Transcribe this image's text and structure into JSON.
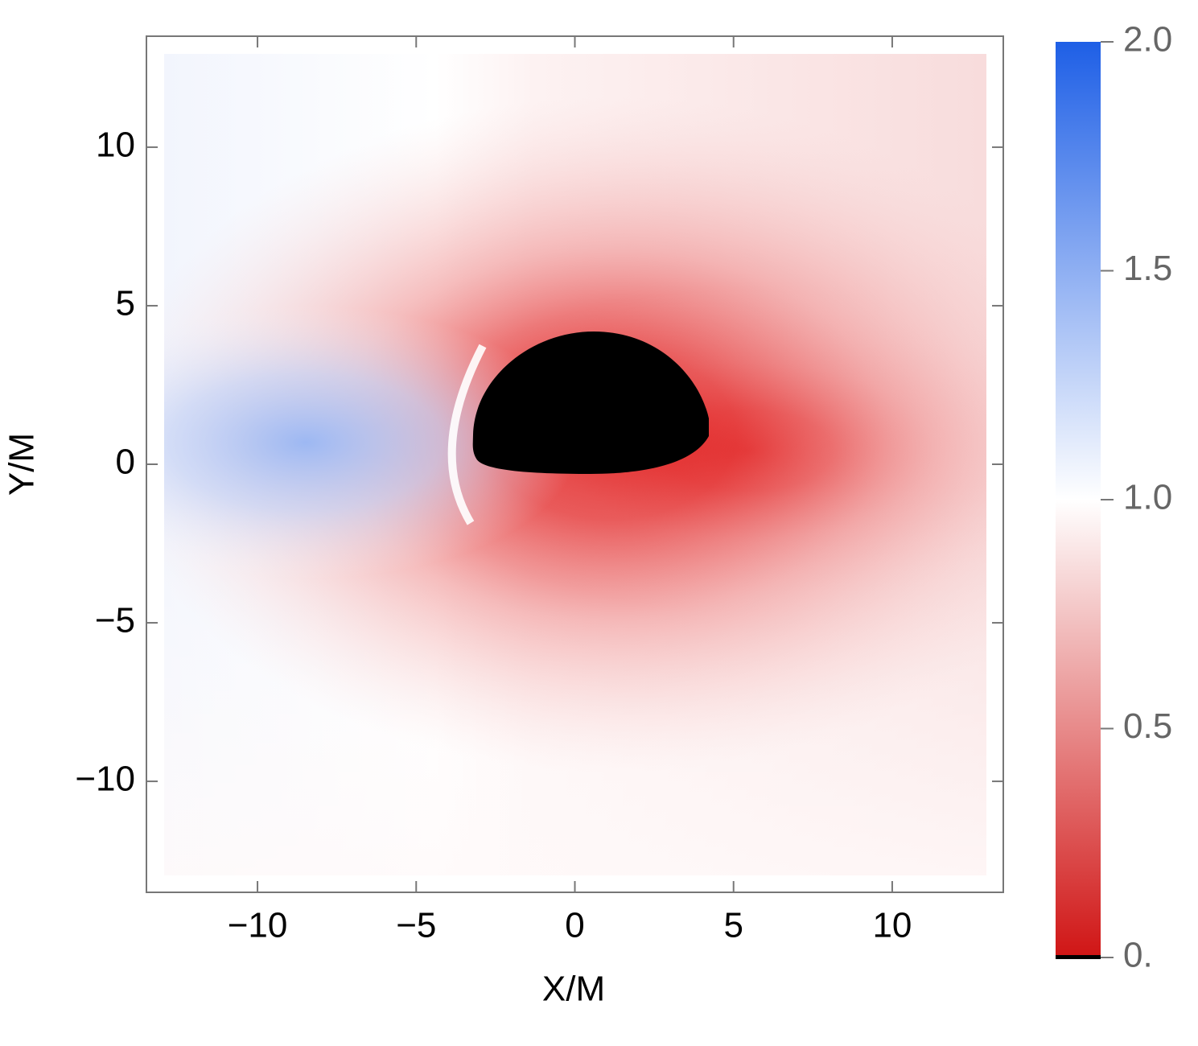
{
  "chart_data": {
    "type": "heatmap",
    "xlabel": "X/M",
    "ylabel": "Y/M",
    "xlim": [
      -13.5,
      13.5
    ],
    "ylim": [
      -13.5,
      13.5
    ],
    "xticks": [
      {
        "value": -10,
        "label": "−10"
      },
      {
        "value": -5,
        "label": "−5"
      },
      0,
      5,
      10
    ],
    "yticks": [
      {
        "value": -10,
        "label": "−10"
      },
      {
        "value": -5,
        "label": "−5"
      },
      0,
      5,
      10
    ],
    "colorbar": {
      "lim": [
        0,
        2
      ],
      "ticks": [
        {
          "value": 0,
          "label": "0."
        },
        0.5,
        {
          "value": 1,
          "label": "1.0"
        },
        1.5,
        {
          "value": 2,
          "label": "2.0"
        }
      ],
      "colors": [
        "#d01515",
        "#ffffff",
        "#1e5fe6"
      ]
    }
  }
}
